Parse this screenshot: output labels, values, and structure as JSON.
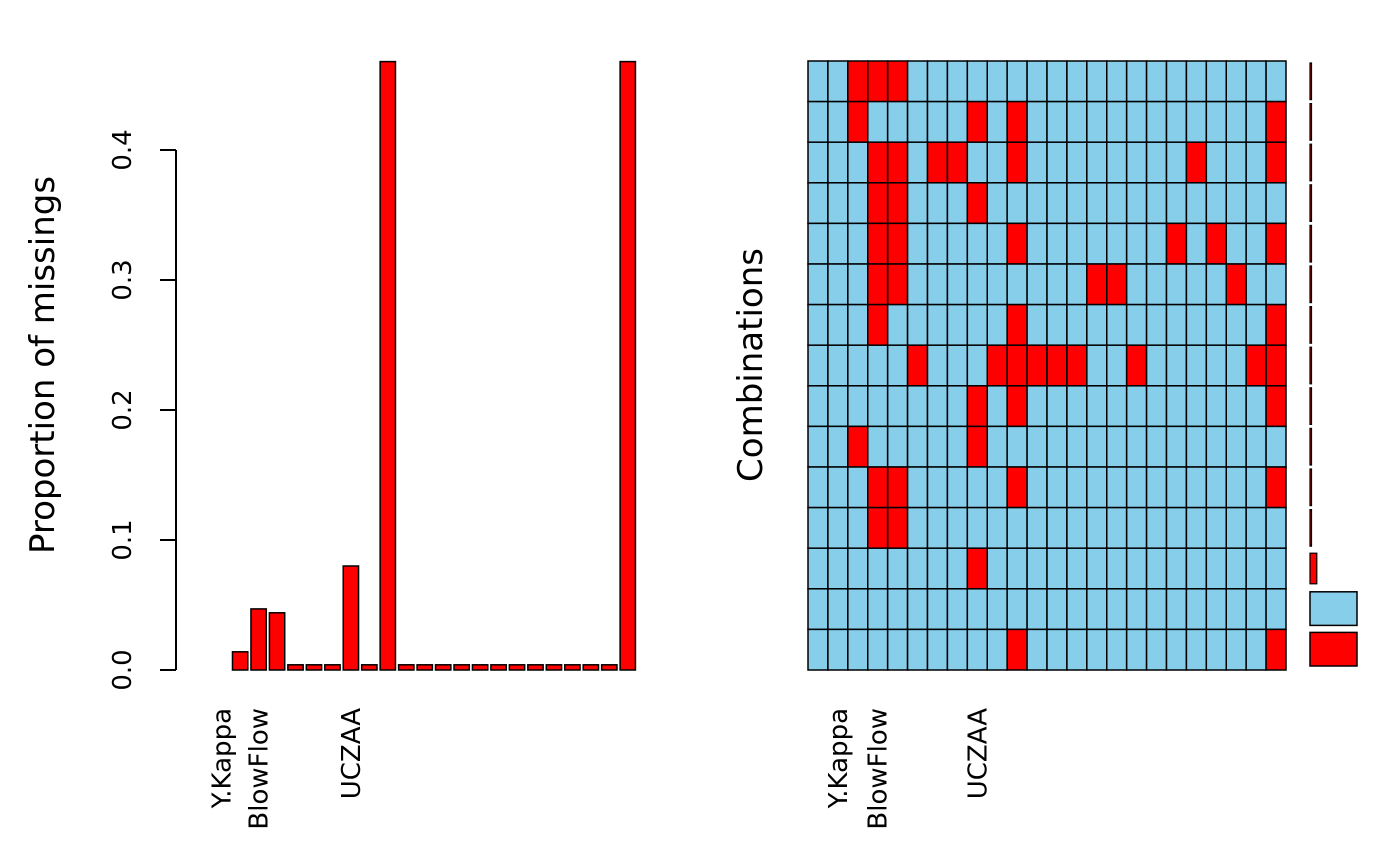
{
  "colors": {
    "observed": "#87CEEB",
    "missing": "#FF0000",
    "outline": "#000000"
  },
  "chart_data": [
    {
      "type": "bar",
      "title": "",
      "xlabel": "",
      "ylabel": "Proportion of missings",
      "ylim": [
        0,
        0.47
      ],
      "yticks": [
        0.0,
        0.1,
        0.2,
        0.3,
        0.4
      ],
      "ytick_labels": [
        "0.0",
        "0.1",
        "0.2",
        "0.3",
        "0.4"
      ],
      "categories": [
        "",
        "Y.Kappa",
        "",
        "BlowFlow",
        "",
        "",
        "",
        "",
        "UCZAA",
        "",
        "",
        "",
        "",
        "",
        "",
        "",
        "",
        "",
        "",
        "",
        "",
        "",
        "",
        ""
      ],
      "values": [
        0.0,
        0.0,
        0.014,
        0.047,
        0.044,
        0.004,
        0.004,
        0.004,
        0.08,
        0.004,
        0.468,
        0.004,
        0.004,
        0.004,
        0.004,
        0.004,
        0.004,
        0.004,
        0.004,
        0.004,
        0.004,
        0.004,
        0.004,
        0.468
      ],
      "bar_color": "#FF0000"
    },
    {
      "type": "heatmap",
      "title": "",
      "xlabel": "",
      "ylabel": "Combinations",
      "columns": [
        "",
        "Y.Kappa",
        "",
        "BlowFlow",
        "",
        "",
        "",
        "",
        "UCZAA",
        "",
        "",
        "",
        "",
        "",
        "",
        "",
        "",
        "",
        "",
        "",
        "",
        "",
        "",
        ""
      ],
      "rows": [
        [
          0,
          0,
          1,
          1,
          1,
          0,
          0,
          0,
          0,
          0,
          0,
          0,
          0,
          0,
          0,
          0,
          0,
          0,
          0,
          0,
          0,
          0,
          0,
          0
        ],
        [
          0,
          0,
          1,
          0,
          0,
          0,
          0,
          0,
          1,
          0,
          1,
          0,
          0,
          0,
          0,
          0,
          0,
          0,
          0,
          0,
          0,
          0,
          0,
          1
        ],
        [
          0,
          0,
          0,
          1,
          1,
          0,
          1,
          1,
          0,
          0,
          1,
          0,
          0,
          0,
          0,
          0,
          0,
          0,
          0,
          1,
          0,
          0,
          0,
          1
        ],
        [
          0,
          0,
          0,
          1,
          1,
          0,
          0,
          0,
          1,
          0,
          0,
          0,
          0,
          0,
          0,
          0,
          0,
          0,
          0,
          0,
          0,
          0,
          0,
          0
        ],
        [
          0,
          0,
          0,
          1,
          1,
          0,
          0,
          0,
          0,
          0,
          1,
          0,
          0,
          0,
          0,
          0,
          0,
          0,
          1,
          0,
          1,
          0,
          0,
          1
        ],
        [
          0,
          0,
          0,
          1,
          1,
          0,
          0,
          0,
          0,
          0,
          0,
          0,
          0,
          0,
          1,
          1,
          0,
          0,
          0,
          0,
          0,
          1,
          0,
          0
        ],
        [
          0,
          0,
          0,
          1,
          0,
          0,
          0,
          0,
          0,
          0,
          1,
          0,
          0,
          0,
          0,
          0,
          0,
          0,
          0,
          0,
          0,
          0,
          0,
          1
        ],
        [
          0,
          0,
          0,
          0,
          0,
          1,
          0,
          0,
          0,
          1,
          1,
          1,
          1,
          1,
          0,
          0,
          1,
          0,
          0,
          0,
          0,
          0,
          1,
          1
        ],
        [
          0,
          0,
          0,
          0,
          0,
          0,
          0,
          0,
          1,
          0,
          1,
          0,
          0,
          0,
          0,
          0,
          0,
          0,
          0,
          0,
          0,
          0,
          0,
          1
        ],
        [
          0,
          0,
          1,
          0,
          0,
          0,
          0,
          0,
          1,
          0,
          0,
          0,
          0,
          0,
          0,
          0,
          0,
          0,
          0,
          0,
          0,
          0,
          0,
          0
        ],
        [
          0,
          0,
          0,
          1,
          1,
          0,
          0,
          0,
          0,
          0,
          1,
          0,
          0,
          0,
          0,
          0,
          0,
          0,
          0,
          0,
          0,
          0,
          0,
          1
        ],
        [
          0,
          0,
          0,
          1,
          1,
          0,
          0,
          0,
          0,
          0,
          0,
          0,
          0,
          0,
          0,
          0,
          0,
          0,
          0,
          0,
          0,
          0,
          0,
          0
        ],
        [
          0,
          0,
          0,
          0,
          0,
          0,
          0,
          0,
          1,
          0,
          0,
          0,
          0,
          0,
          0,
          0,
          0,
          0,
          0,
          0,
          0,
          0,
          0,
          0
        ],
        [
          0,
          0,
          0,
          0,
          0,
          0,
          0,
          0,
          0,
          0,
          0,
          0,
          0,
          0,
          0,
          0,
          0,
          0,
          0,
          0,
          0,
          0,
          0,
          0
        ],
        [
          0,
          0,
          0,
          0,
          0,
          0,
          0,
          0,
          0,
          0,
          1,
          0,
          0,
          0,
          0,
          0,
          0,
          0,
          0,
          0,
          0,
          0,
          0,
          1
        ]
      ],
      "row_frequencies": [
        0.001,
        0.001,
        0.001,
        0.001,
        0.001,
        0.001,
        0.001,
        0.001,
        0.001,
        0.001,
        0.001,
        0.001,
        0.01,
        0.07,
        0.07
      ],
      "legend": [
        "observed",
        "missing"
      ]
    }
  ]
}
